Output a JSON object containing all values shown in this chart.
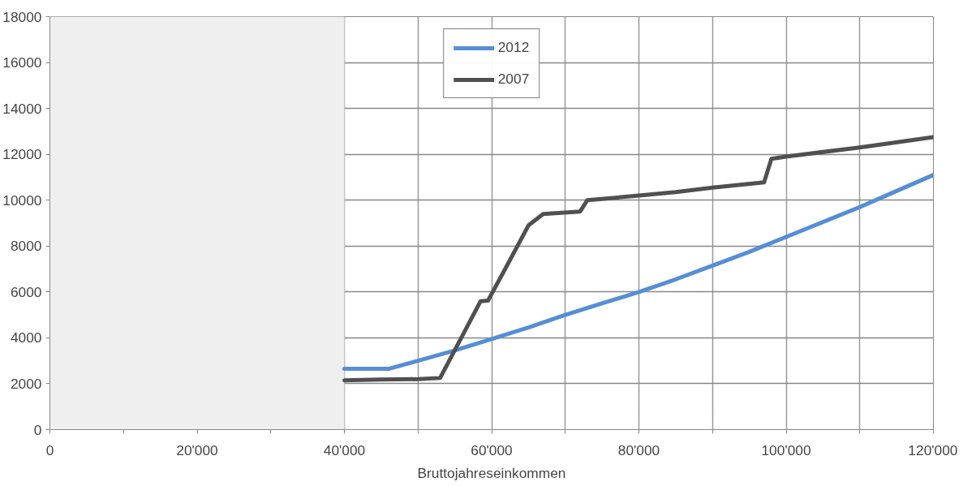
{
  "chart_data": {
    "type": "line",
    "xlabel": "Bruttojahreseinkommen",
    "xlim": [
      0,
      120000
    ],
    "ylim": [
      0,
      18000
    ],
    "xticks": [
      0,
      {
        "value": 10000,
        "label": null
      },
      {
        "value": 20000,
        "label": "20'000"
      },
      {
        "value": 30000,
        "label": null
      },
      {
        "value": 40000,
        "label": "40'000"
      },
      {
        "value": 50000,
        "label": null
      },
      {
        "value": 60000,
        "label": "60'000"
      },
      {
        "value": 70000,
        "label": null
      },
      {
        "value": 80000,
        "label": "80'000"
      },
      {
        "value": 90000,
        "label": null
      },
      {
        "value": 100000,
        "label": "100'000"
      },
      {
        "value": 110000,
        "label": null
      },
      {
        "value": 120000,
        "label": "120'000"
      }
    ],
    "yticks": [
      0,
      2000,
      4000,
      6000,
      8000,
      10000,
      12000,
      14000,
      16000,
      18000
    ],
    "grid": true,
    "legend": "top",
    "line_style": "solid",
    "marker": "none",
    "bands": [
      {
        "axis": "x",
        "from": 0,
        "to": 40000,
        "color": "#efefef"
      }
    ],
    "series": [
      {
        "name": "2012",
        "color": "#558ed5",
        "x": [
          40000,
          46000,
          50000,
          55000,
          60000,
          65000,
          70000,
          75000,
          80000,
          85000,
          90000,
          95000,
          100000,
          105000,
          110000,
          115000,
          120000
        ],
        "values": [
          2650,
          2650,
          3000,
          3450,
          3950,
          4450,
          5000,
          5500,
          6000,
          6550,
          7150,
          7750,
          8400,
          9050,
          9700,
          10400,
          11100
        ]
      },
      {
        "name": "2007",
        "color": "#505050",
        "x": [
          40000,
          45000,
          50000,
          53000,
          58500,
          59500,
          62000,
          65000,
          67000,
          72000,
          73000,
          80000,
          85000,
          90000,
          97000,
          98000,
          100000,
          110000,
          120000
        ],
        "values": [
          2150,
          2180,
          2200,
          2250,
          5600,
          5620,
          7100,
          8900,
          9400,
          9500,
          10000,
          10200,
          10350,
          10550,
          10780,
          11800,
          11900,
          12300,
          12750
        ]
      }
    ]
  }
}
